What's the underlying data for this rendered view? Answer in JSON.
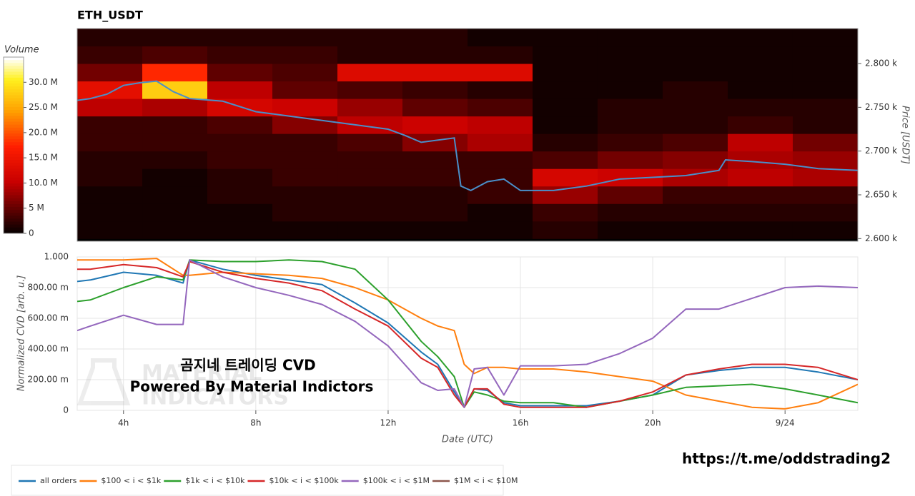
{
  "chart_data": [
    {
      "type": "heatmap",
      "title": "ETH_USDT",
      "y_label": "Price [USDT]",
      "colorbar_label": "Volume",
      "xlim": [
        2.6,
        26.2
      ],
      "ylim": [
        2597,
        2840
      ],
      "yticks": [
        {
          "value": 2600,
          "label": "2.600 k"
        },
        {
          "value": 2650,
          "label": "2.650 k"
        },
        {
          "value": 2700,
          "label": "2.700 k"
        },
        {
          "value": 2750,
          "label": "2.750 k"
        },
        {
          "value": 2800,
          "label": "2.800 k"
        }
      ],
      "clim": [
        0,
        35
      ],
      "cticks": [
        0,
        {
          "value": 5,
          "label": "5 M"
        },
        {
          "value": 10,
          "label": "10.0 M"
        },
        {
          "value": 15,
          "label": "15.0 M"
        },
        {
          "value": 20,
          "label": "20.0 M"
        },
        {
          "value": 25,
          "label": "25.0 M"
        },
        {
          "value": 30,
          "label": "30.0 M"
        }
      ],
      "x_edges": [
        2.6,
        4.567,
        6.533,
        8.5,
        10.467,
        12.433,
        14.4,
        16.367,
        18.333,
        20.3,
        22.267,
        24.233,
        26.2
      ],
      "y_edges": [
        2600,
        2620,
        2640,
        2660,
        2680,
        2700,
        2720,
        2740,
        2760,
        2780,
        2800,
        2820,
        2840
      ],
      "z": [
        [
          1,
          1,
          1,
          1,
          1,
          1,
          1,
          2,
          1,
          1,
          1,
          1
        ],
        [
          1,
          1,
          1,
          2,
          2,
          2,
          1,
          3,
          2,
          2,
          2,
          2
        ],
        [
          1,
          1,
          2,
          2,
          2,
          2,
          3,
          8,
          5,
          3,
          3,
          3
        ],
        [
          2,
          1,
          2,
          3,
          3,
          3,
          3,
          12,
          11,
          9,
          10,
          9
        ],
        [
          2,
          2,
          3,
          3,
          3,
          3,
          3,
          4,
          6,
          7,
          9,
          8
        ],
        [
          3,
          3,
          3,
          3,
          4,
          7,
          9,
          2,
          3,
          4,
          10,
          6
        ],
        [
          3,
          3,
          4,
          7,
          10,
          11,
          10,
          1,
          2,
          2,
          3,
          2
        ],
        [
          10,
          9,
          12,
          11,
          8,
          5,
          4,
          1,
          2,
          2,
          2,
          2
        ],
        [
          14,
          28,
          10,
          5,
          4,
          3,
          2,
          1,
          1,
          2,
          1,
          1
        ],
        [
          6,
          18,
          5,
          4,
          13,
          13,
          13,
          1,
          1,
          1,
          1,
          1
        ],
        [
          3,
          4,
          3,
          3,
          2,
          2,
          2,
          1,
          1,
          1,
          1,
          1
        ],
        [
          2,
          2,
          2,
          2,
          2,
          2,
          1,
          1,
          1,
          1,
          1,
          1
        ]
      ],
      "price": {
        "color": "#4a8fc9",
        "x": [
          2.6,
          3,
          3.5,
          4,
          4.5,
          5,
          5.5,
          6,
          7,
          8,
          9,
          10,
          11,
          12,
          12.5,
          13,
          14,
          14.2,
          14.5,
          15,
          15.5,
          16,
          17,
          18,
          19,
          20,
          21,
          22,
          22.2,
          23,
          24,
          25,
          26.2
        ],
        "values": [
          2758,
          2760,
          2765,
          2775,
          2778,
          2780,
          2768,
          2760,
          2757,
          2745,
          2740,
          2735,
          2730,
          2725,
          2718,
          2710,
          2715,
          2660,
          2655,
          2665,
          2668,
          2655,
          2655,
          2660,
          2668,
          2670,
          2672,
          2678,
          2690,
          2688,
          2685,
          2680,
          2678
        ]
      }
    },
    {
      "type": "line",
      "x_label": "Date (UTC)",
      "y_label": "Normalized CVD [arb. u.]",
      "xlim": [
        2.6,
        26.2
      ],
      "ylim": [
        0,
        1
      ],
      "xticks": [
        {
          "value": 4,
          "label": "4h"
        },
        {
          "value": 8,
          "label": "8h"
        },
        {
          "value": 12,
          "label": "12h"
        },
        {
          "value": 16,
          "label": "16h"
        },
        {
          "value": 20,
          "label": "20h"
        },
        {
          "value": 24,
          "label": "9/24"
        }
      ],
      "yticks": [
        0,
        {
          "value": 0.2,
          "label": "200.00 m"
        },
        {
          "value": 0.4,
          "label": "400.00 m"
        },
        {
          "value": 0.6,
          "label": "600.00 m"
        },
        {
          "value": 0.8,
          "label": "800.00 m"
        },
        {
          "value": 1,
          "label": "1.000"
        }
      ],
      "grid": true,
      "annotations": [
        "곰지네 트레이딩 CVD",
        "Powered By Material Indictors"
      ],
      "x": [
        2.6,
        3,
        4,
        5,
        5.8,
        6,
        7,
        8,
        9,
        10,
        11,
        12,
        13,
        13.5,
        14,
        14.3,
        14.6,
        15,
        15.5,
        16,
        17,
        18,
        19,
        20,
        21,
        22,
        23,
        24,
        25,
        26.2
      ],
      "series": [
        {
          "name": "all orders",
          "color": "#1f77b4",
          "values": [
            0.84,
            0.85,
            0.9,
            0.88,
            0.83,
            0.98,
            0.92,
            0.88,
            0.85,
            0.82,
            0.7,
            0.57,
            0.38,
            0.3,
            0.12,
            0.02,
            0.14,
            0.13,
            0.05,
            0.03,
            0.03,
            0.03,
            0.06,
            0.1,
            0.23,
            0.26,
            0.28,
            0.28,
            0.25,
            0.2
          ]
        },
        {
          "name": "$100 < i < $1k",
          "color": "#ff7f0e",
          "values": [
            0.98,
            0.98,
            0.98,
            0.99,
            0.88,
            0.88,
            0.9,
            0.89,
            0.88,
            0.86,
            0.8,
            0.72,
            0.6,
            0.55,
            0.52,
            0.3,
            0.24,
            0.28,
            0.28,
            0.27,
            0.27,
            0.25,
            0.22,
            0.19,
            0.1,
            0.06,
            0.02,
            0.01,
            0.05,
            0.17
          ]
        },
        {
          "name": "$1k < i < $10k",
          "color": "#2ca02c",
          "values": [
            0.71,
            0.72,
            0.8,
            0.87,
            0.85,
            0.98,
            0.97,
            0.97,
            0.98,
            0.97,
            0.92,
            0.72,
            0.45,
            0.35,
            0.22,
            0.02,
            0.12,
            0.1,
            0.06,
            0.05,
            0.05,
            0.02,
            0.06,
            0.1,
            0.15,
            0.16,
            0.17,
            0.14,
            0.1,
            0.05
          ]
        },
        {
          "name": "$10k < i < $100k",
          "color": "#d62728",
          "values": [
            0.92,
            0.92,
            0.95,
            0.93,
            0.87,
            0.97,
            0.9,
            0.86,
            0.83,
            0.78,
            0.66,
            0.55,
            0.34,
            0.28,
            0.1,
            0.02,
            0.14,
            0.14,
            0.04,
            0.02,
            0.02,
            0.02,
            0.06,
            0.12,
            0.23,
            0.27,
            0.3,
            0.3,
            0.28,
            0.2
          ]
        },
        {
          "name": "$100k < i < $1M",
          "color": "#9467bd",
          "values": [
            0.52,
            0.55,
            0.62,
            0.56,
            0.56,
            0.98,
            0.87,
            0.8,
            0.75,
            0.69,
            0.58,
            0.42,
            0.18,
            0.13,
            0.14,
            0.02,
            0.27,
            0.28,
            0.1,
            0.29,
            0.29,
            0.3,
            0.37,
            0.47,
            0.66,
            0.66,
            0.73,
            0.8,
            0.81,
            0.8
          ]
        },
        {
          "name": "$1M < i < $10M",
          "color": "#8c564b",
          "values": [
            null,
            null,
            null,
            null,
            null,
            null,
            null,
            null,
            null,
            null,
            null,
            null,
            null,
            null,
            null,
            null,
            null,
            null,
            null,
            null,
            null,
            null,
            null,
            null,
            null,
            null,
            null,
            null,
            null,
            null
          ]
        }
      ]
    }
  ],
  "watermark": [
    "MATERIAL",
    "INDICATORS"
  ],
  "footer_link": "https://t.me/oddstrading2"
}
